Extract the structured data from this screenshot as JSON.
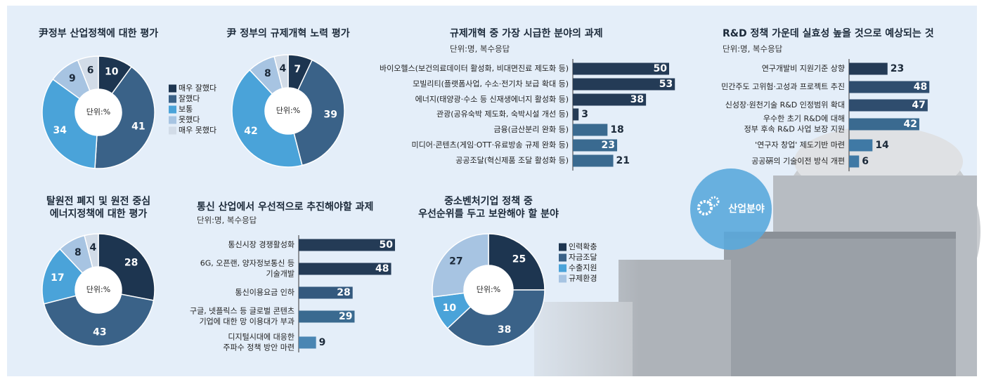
{
  "badge": "산업분야",
  "chart_data": [
    {
      "type": "donut",
      "title": "尹정부 산업정책에 대한 평가",
      "unit": "단위:%",
      "categories": [
        "매우 잘했다",
        "잘했다",
        "보통",
        "못했다",
        "매우 못했다"
      ],
      "values": [
        10,
        41,
        34,
        9,
        6
      ],
      "colors": [
        "#1d3550",
        "#3a6288",
        "#4aa3d9",
        "#a7c4e2",
        "#d2dce8"
      ],
      "legend": true
    },
    {
      "type": "donut",
      "title": "尹 정부의 규제개혁 노력 평가",
      "unit": "단위:%",
      "values": [
        7,
        39,
        42,
        8,
        4
      ],
      "colors": [
        "#1d3550",
        "#3a6288",
        "#4aa3d9",
        "#a7c4e2",
        "#d2dce8"
      ],
      "legend": false
    },
    {
      "type": "hbar",
      "title": "규제개혁 중 가장 시급한 분야의 과제",
      "subtitle": "단위:명, 복수응답",
      "categories": [
        "바이오헬스(보건의료데이터 활성화, 비대면진료 제도화 등)",
        "모빌리티(플랫폼사업, 수소·전기차 보급 확대 등)",
        "에너지(태양광·수소 등 신재생에너지 활성화 등)",
        "관광(공유숙박 제도화, 숙박시설 개선 등)",
        "금융(금산분리 완화 등)",
        "미디어·콘텐츠(게임·OTT·유료방송 규제 완화 등)",
        "공공조달(혁신제품 조달 활성화 등)"
      ],
      "values": [
        50,
        53,
        38,
        3,
        18,
        23,
        21
      ],
      "colors": [
        "#243b56",
        "#243b56",
        "#243b56",
        "#243b56",
        "#3a6a90",
        "#3a6a90",
        "#3a6a90"
      ]
    },
    {
      "type": "hbar",
      "title": "R&D 정책 가운데 실효성 높을 것으로 예상되는 것",
      "subtitle": "단위:명, 복수응답",
      "categories": [
        "연구개발비 지원기준 상향",
        "민간주도 고위험·고성과 프로젝트 추진",
        "신성장·원천기술 R&D 인정범위 확대",
        [
          "우수한 초기 R&D에 대해",
          "정부 후속 R&D 사업 보장 지원"
        ],
        "'연구자 창업' 제도기반 마련",
        "공공硏의 기술이전 방식 개편"
      ],
      "values": [
        23,
        48,
        47,
        42,
        14,
        6
      ],
      "colors": [
        "#243b56",
        "#2f4d6e",
        "#2f4d6e",
        "#3a6a90",
        "#3f79a5",
        "#3f79a5"
      ]
    },
    {
      "type": "donut",
      "title": [
        "탈원전 폐지 및 원전 중심",
        "에너지정책에 대한 평가"
      ],
      "unit": "단위:%",
      "values": [
        28,
        43,
        17,
        8,
        4
      ],
      "colors": [
        "#1d3550",
        "#3a6288",
        "#4aa3d9",
        "#a7c4e2",
        "#d2dce8"
      ],
      "legend": false
    },
    {
      "type": "hbar",
      "title": "통신 산업에서 우선적으로 추진해야할 과제",
      "subtitle": "단위:명, 복수응답",
      "categories": [
        "통신시장 경쟁활성화",
        [
          "6G, 오픈랜, 양자정보통신 등",
          "기술개발"
        ],
        "통신이용요금 인하",
        [
          "구글, 넷플릭스 등 글로벌 콘텐츠",
          "기업에 대한 망 이용대가 부과"
        ],
        [
          "디지털시대에 대응한",
          "주파수 정책 방안 마련"
        ]
      ],
      "values": [
        50,
        48,
        28,
        29,
        9
      ],
      "colors": [
        "#243b56",
        "#243b56",
        "#34597e",
        "#3a6a90",
        "#4a86b3"
      ]
    },
    {
      "type": "donut",
      "title": [
        "중소벤처기업 정책 중",
        "우선순위를 두고 보완해야 할 분야"
      ],
      "unit": "단위:%",
      "categories": [
        "인력확충",
        "자금조달",
        "수출지원",
        "규제환경"
      ],
      "values": [
        25,
        38,
        10,
        27
      ],
      "colors": [
        "#1d3550",
        "#3a6288",
        "#4aa3d9",
        "#a7c4e2"
      ],
      "legend": true
    }
  ]
}
